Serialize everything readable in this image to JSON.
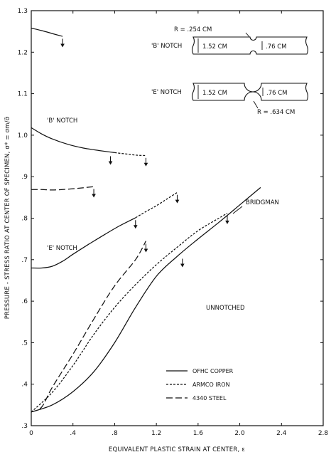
{
  "chart_data": {
    "type": "line",
    "xlabel": "EQUIVALENT PLASTIC STRAIN AT CENTER, ε",
    "ylabel": "PRESSURE - STRESS RATIO AT CENTER OF SPECIMEN, σ* = σm/σ̄",
    "xlim": [
      0,
      2.8
    ],
    "ylim": [
      0.3,
      1.3
    ],
    "x_ticks": [
      "0",
      ".4",
      ".8",
      "1.2",
      "1.6",
      "2.0",
      "2.4",
      "2.8"
    ],
    "y_ticks": [
      ".3",
      ".4",
      ".5",
      ".6",
      ".7",
      ".8",
      ".9",
      "1.0",
      "1.1",
      "1.2",
      "1.3"
    ],
    "grid": false,
    "legend_position": "lower-middle",
    "legend": [
      {
        "label": "OFHC COPPER",
        "style": "solid"
      },
      {
        "label": "ARMCO IRON",
        "style": "short-dash"
      },
      {
        "label": "4340 STEEL",
        "style": "long-dash"
      }
    ],
    "series": [
      {
        "group": "B notch",
        "material": "OFHC COPPER",
        "style": "solid",
        "points": [
          [
            0,
            1.258
          ],
          [
            0.1,
            1.252
          ],
          [
            0.2,
            1.245
          ],
          [
            0.3,
            1.238
          ]
        ]
      },
      {
        "group": "B notch",
        "material": "OFHC COPPER",
        "style": "solid",
        "points": [
          [
            0,
            1.018
          ],
          [
            0.1,
            1.003
          ],
          [
            0.2,
            0.991
          ],
          [
            0.35,
            0.978
          ],
          [
            0.5,
            0.969
          ],
          [
            0.65,
            0.963
          ],
          [
            0.8,
            0.958
          ]
        ]
      },
      {
        "group": "B notch",
        "material": "ARMCO IRON",
        "style": "short-dash",
        "points": [
          [
            0.8,
            0.958
          ],
          [
            0.9,
            0.955
          ],
          [
            1.0,
            0.952
          ],
          [
            1.1,
            0.951
          ]
        ]
      },
      {
        "group": "E notch",
        "material": "4340 STEEL",
        "style": "long-dash",
        "points": [
          [
            0,
            0.869
          ],
          [
            0.1,
            0.869
          ],
          [
            0.2,
            0.868
          ],
          [
            0.3,
            0.869
          ],
          [
            0.45,
            0.872
          ],
          [
            0.6,
            0.876
          ]
        ]
      },
      {
        "group": "E notch",
        "material": "OFHC COPPER",
        "style": "solid",
        "points": [
          [
            0,
            0.68
          ],
          [
            0.1,
            0.68
          ],
          [
            0.2,
            0.684
          ],
          [
            0.3,
            0.696
          ],
          [
            0.4,
            0.713
          ],
          [
            0.55,
            0.737
          ],
          [
            0.7,
            0.76
          ],
          [
            0.85,
            0.782
          ],
          [
            1.0,
            0.801
          ]
        ]
      },
      {
        "group": "E notch",
        "material": "ARMCO IRON",
        "style": "short-dash",
        "points": [
          [
            1.0,
            0.801
          ],
          [
            1.1,
            0.816
          ],
          [
            1.2,
            0.83
          ],
          [
            1.3,
            0.846
          ],
          [
            1.4,
            0.862
          ]
        ]
      },
      {
        "group": "Unnotched",
        "material": "OFHC COPPER",
        "style": "solid",
        "points": [
          [
            0,
            0.333
          ],
          [
            0.2,
            0.35
          ],
          [
            0.4,
            0.382
          ],
          [
            0.6,
            0.43
          ],
          [
            0.8,
            0.5
          ],
          [
            1.0,
            0.585
          ],
          [
            1.2,
            0.66
          ],
          [
            1.4,
            0.708
          ],
          [
            1.6,
            0.75
          ],
          [
            1.8,
            0.79
          ],
          [
            2.0,
            0.832
          ],
          [
            2.2,
            0.874
          ]
        ]
      },
      {
        "group": "Unnotched",
        "material": "ARMCO IRON",
        "style": "short-dash",
        "points": [
          [
            0,
            0.333
          ],
          [
            0.2,
            0.38
          ],
          [
            0.4,
            0.445
          ],
          [
            0.6,
            0.52
          ],
          [
            0.8,
            0.585
          ],
          [
            1.0,
            0.64
          ],
          [
            1.2,
            0.688
          ],
          [
            1.4,
            0.73
          ],
          [
            1.6,
            0.77
          ],
          [
            1.8,
            0.8
          ],
          [
            1.88,
            0.812
          ]
        ]
      },
      {
        "group": "Unnotched",
        "material": "4340 STEEL",
        "style": "long-dash",
        "points": [
          [
            0,
            0.333
          ],
          [
            0.1,
            0.345
          ],
          [
            0.2,
            0.392
          ],
          [
            0.4,
            0.472
          ],
          [
            0.6,
            0.557
          ],
          [
            0.8,
            0.637
          ],
          [
            1.0,
            0.7
          ],
          [
            1.1,
            0.745
          ]
        ]
      }
    ],
    "fracture_markers": [
      {
        "x": 0.3,
        "y": 1.222
      },
      {
        "x": 0.76,
        "y": 0.939
      },
      {
        "x": 1.1,
        "y": 0.935
      },
      {
        "x": 0.6,
        "y": 0.86
      },
      {
        "x": 1.4,
        "y": 0.846
      },
      {
        "x": 1.0,
        "y": 0.785
      },
      {
        "x": 1.1,
        "y": 0.728
      },
      {
        "x": 1.45,
        "y": 0.692
      },
      {
        "x": 1.88,
        "y": 0.796
      }
    ],
    "annotations": {
      "b_notch": "'B' NOTCH",
      "e_notch": "'E' NOTCH",
      "bridgman": "BRIDGMAN",
      "unnotched": "UNNOTCHED"
    },
    "inset": {
      "b_notch": {
        "label": "'B' NOTCH",
        "width_label": "1.52 CM",
        "neck_label": ".76 CM",
        "radius_label": "R = .254 CM"
      },
      "e_notch": {
        "label": "'E' NOTCH",
        "width_label": "1.52 CM",
        "neck_label": ".76 CM",
        "radius_label": "R = .634 CM"
      }
    }
  }
}
